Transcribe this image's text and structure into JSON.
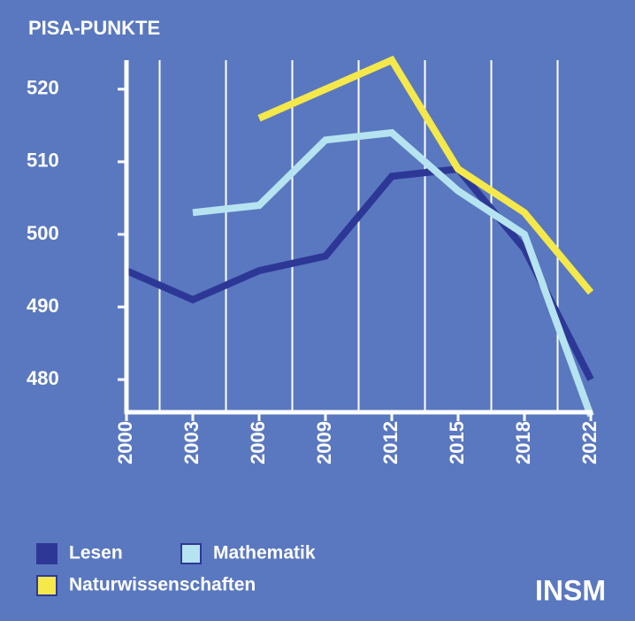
{
  "chart_data": {
    "type": "line",
    "title": "PISA-PUNKTE",
    "source": "INSM",
    "categories": [
      "2000",
      "2003",
      "2006",
      "2009",
      "2012",
      "2015",
      "2018",
      "2022"
    ],
    "series": [
      {
        "name": "Lesen",
        "color": "#2d3896",
        "values": [
          495,
          491,
          495,
          497,
          508,
          509,
          498,
          480
        ]
      },
      {
        "name": "Mathematik",
        "color": "#b6e3f0",
        "values": [
          null,
          503,
          504,
          513,
          514,
          506,
          500,
          475
        ]
      },
      {
        "name": "Naturwissenschaften",
        "color": "#f4e84a",
        "values": [
          null,
          null,
          516,
          520,
          524,
          509,
          503,
          492
        ]
      }
    ],
    "ylim": [
      475.5,
      524
    ],
    "yticks": [
      480,
      490,
      500,
      510,
      520
    ],
    "grid": true
  }
}
